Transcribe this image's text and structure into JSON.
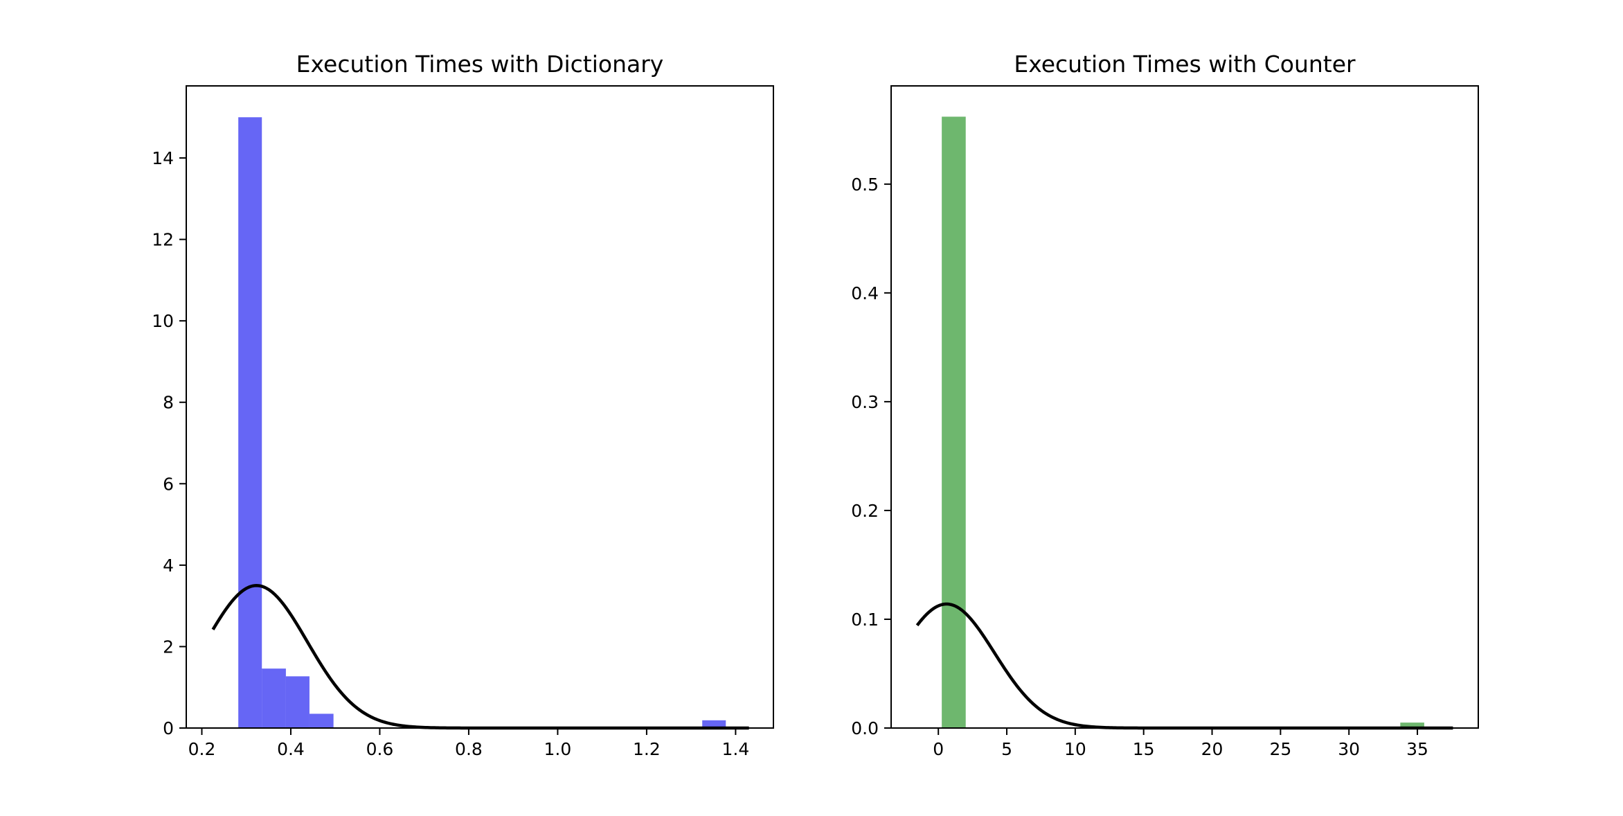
{
  "chart_data": [
    {
      "type": "bar",
      "title": "Execution Times with Dictionary",
      "xlabel": "",
      "ylabel": "",
      "xlim": [
        0.165,
        1.485
      ],
      "ylim": [
        0,
        15.77
      ],
      "bar_color": "#0000ee",
      "bar_opacity": 0.6,
      "curve_color": "#000000",
      "x_ticks": [
        0.2,
        0.4,
        0.6,
        0.8,
        1.0,
        1.2,
        1.4
      ],
      "x_tick_labels": [
        "0.2",
        "0.4",
        "0.6",
        "0.8",
        "1.0",
        "1.2",
        "1.4"
      ],
      "y_ticks": [
        0,
        2,
        4,
        6,
        8,
        10,
        12,
        14
      ],
      "y_tick_labels": [
        "0",
        "2",
        "4",
        "6",
        "8",
        "10",
        "12",
        "14"
      ],
      "bars": [
        {
          "x0": 0.282,
          "x1": 0.335,
          "value": 15.0
        },
        {
          "x0": 0.335,
          "x1": 0.389,
          "value": 1.46
        },
        {
          "x0": 0.389,
          "x1": 0.442,
          "value": 1.27
        },
        {
          "x0": 0.442,
          "x1": 0.496,
          "value": 0.35
        },
        {
          "x0": 1.325,
          "x1": 1.378,
          "value": 0.19
        }
      ],
      "curve": {
        "kind": "normal_pdf",
        "mean": 0.323,
        "sd": 0.114,
        "x_range": [
          0.225,
          1.43
        ]
      }
    },
    {
      "type": "bar",
      "title": "Execution Times with Counter",
      "xlabel": "",
      "ylabel": "",
      "xlim": [
        -3.45,
        39.45
      ],
      "ylim": [
        0,
        0.5903
      ],
      "bar_color": "#008000",
      "bar_opacity": 0.57,
      "curve_color": "#000000",
      "x_ticks": [
        0,
        5,
        10,
        15,
        20,
        25,
        30,
        35
      ],
      "x_tick_labels": [
        "0",
        "5",
        "10",
        "15",
        "20",
        "25",
        "30",
        "35"
      ],
      "y_ticks": [
        0.0,
        0.1,
        0.2,
        0.3,
        0.4,
        0.5
      ],
      "y_tick_labels": [
        "0.0",
        "0.1",
        "0.2",
        "0.3",
        "0.4",
        "0.5"
      ],
      "bars": [
        {
          "x0": 0.25,
          "x1": 2.0,
          "value": 0.562
        },
        {
          "x0": 33.75,
          "x1": 35.5,
          "value": 0.005
        }
      ],
      "curve": {
        "kind": "normal_pdf",
        "mean": 0.6,
        "sd": 3.5,
        "x_range": [
          -1.55,
          37.6
        ]
      }
    }
  ]
}
